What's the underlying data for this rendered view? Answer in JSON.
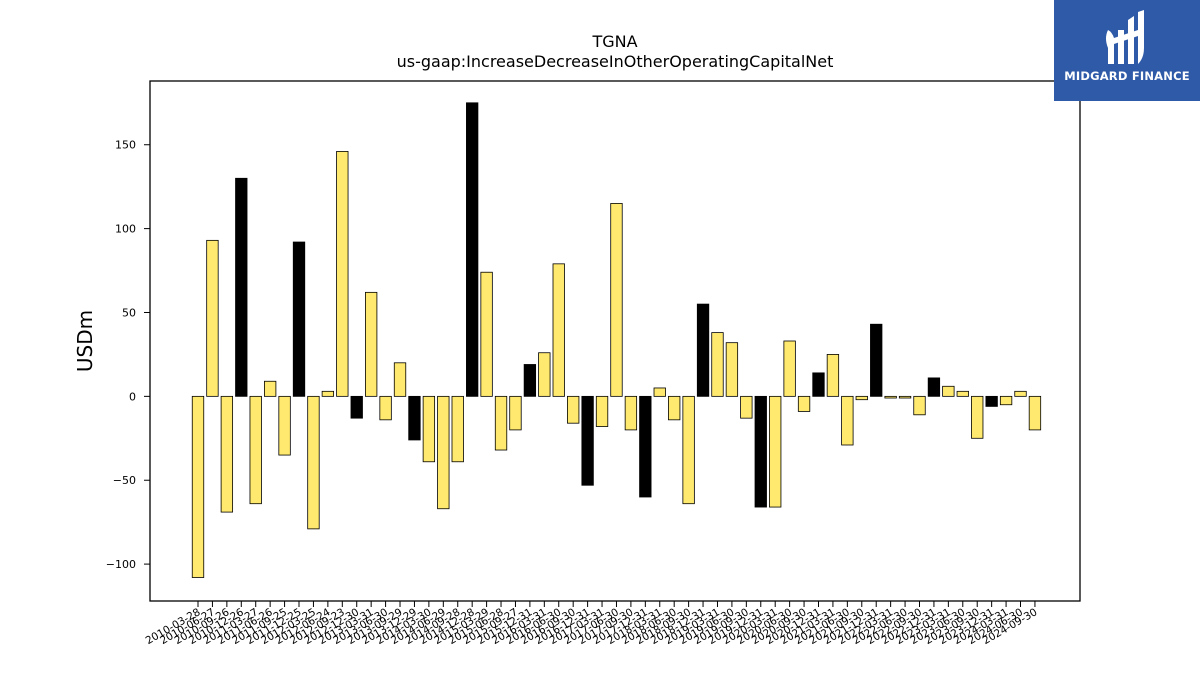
{
  "chart_data": {
    "type": "bar",
    "title": "TGNA",
    "subtitle": "us-gaap:IncreaseDecreaseInOtherOperatingCapitalNet",
    "ylabel": "USDm",
    "xlabel": "",
    "ylim": [
      -122,
      188
    ],
    "yticks": [
      -100,
      -50,
      0,
      50,
      100,
      150
    ],
    "grid": false,
    "colors": {
      "fourth_quarter": "#000000",
      "other": "#ffe96e",
      "edge": "#000000"
    },
    "categories": [
      "2010-03-28",
      "2010-06-27",
      "2010-09-26",
      "2010-12-26",
      "2011-03-27",
      "2011-06-26",
      "2011-09-25",
      "2011-12-25",
      "2012-03-25",
      "2012-06-24",
      "2012-09-23",
      "2012-12-30",
      "2013-03-31",
      "2013-06-30",
      "2013-09-29",
      "2013-12-29",
      "2014-03-30",
      "2014-06-29",
      "2014-09-28",
      "2014-12-28",
      "2015-03-29",
      "2015-06-28",
      "2015-09-27",
      "2015-12-31",
      "2016-03-31",
      "2016-06-30",
      "2016-09-30",
      "2016-12-31",
      "2017-03-31",
      "2017-06-30",
      "2017-09-30",
      "2017-12-31",
      "2018-03-31",
      "2018-06-30",
      "2018-09-30",
      "2018-12-31",
      "2019-03-31",
      "2019-06-30",
      "2019-09-30",
      "2019-12-31",
      "2020-03-31",
      "2020-06-30",
      "2020-09-30",
      "2020-12-31",
      "2021-03-31",
      "2021-06-30",
      "2021-09-30",
      "2021-12-31",
      "2022-03-31",
      "2022-06-30",
      "2022-09-30",
      "2022-12-31",
      "2023-03-31",
      "2023-06-30",
      "2023-09-30",
      "2023-12-31",
      "2024-03-31",
      "2024-06-30",
      "2024-09-30"
    ],
    "values": [
      -108,
      93,
      -69,
      130,
      -64,
      9,
      -35,
      92,
      -79,
      3,
      146,
      -13,
      62,
      -14,
      20,
      -26,
      -39,
      -67,
      -39,
      175,
      74,
      -32,
      -20,
      19,
      26,
      79,
      -16,
      -53,
      -18,
      115,
      -20,
      -60,
      5,
      -14,
      -64,
      55,
      38,
      32,
      -13,
      -66,
      -66,
      33,
      -9,
      14,
      25,
      -29,
      -2,
      43,
      -1,
      -1,
      -11,
      11,
      6,
      3,
      -25,
      -6,
      -5,
      3,
      -20
    ],
    "highlighted": [
      false,
      false,
      false,
      true,
      false,
      false,
      false,
      true,
      false,
      false,
      false,
      true,
      false,
      false,
      false,
      true,
      false,
      false,
      false,
      true,
      false,
      false,
      false,
      true,
      false,
      false,
      false,
      true,
      false,
      false,
      false,
      true,
      false,
      false,
      false,
      true,
      false,
      false,
      false,
      true,
      false,
      false,
      false,
      true,
      false,
      false,
      false,
      true,
      false,
      false,
      false,
      true,
      false,
      false,
      false,
      true,
      false,
      false,
      false
    ]
  },
  "logo": {
    "text": "MIDGARD FINANCE"
  }
}
